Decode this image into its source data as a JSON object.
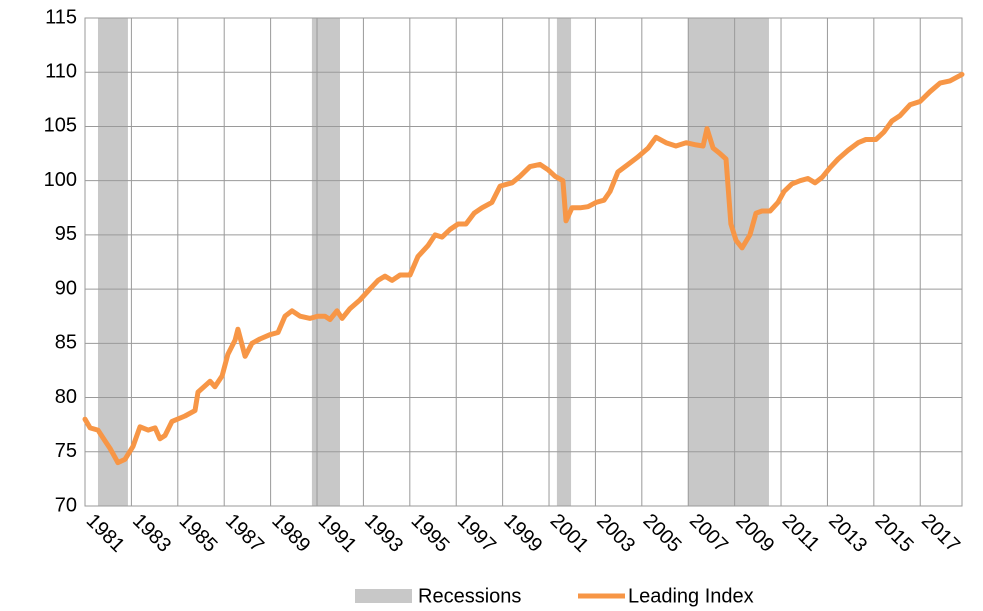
{
  "chart_data": {
    "type": "line",
    "x": [
      1981.0,
      1981.22,
      1981.56,
      1981.86,
      1982.08,
      1982.29,
      1982.42,
      1982.72,
      1983.07,
      1983.37,
      1983.72,
      1984.02,
      1984.23,
      1984.45,
      1984.75,
      1985.31,
      1985.74,
      1985.87,
      1986.39,
      1986.6,
      1986.91,
      1987.16,
      1987.47,
      1987.59,
      1987.9,
      1988.2,
      1988.54,
      1988.97,
      1989.32,
      1989.62,
      1989.92,
      1990.27,
      1990.7,
      1991.04,
      1991.34,
      1991.56,
      1991.86,
      1992.08,
      1992.42,
      1992.85,
      1993.28,
      1993.63,
      1993.93,
      1994.23,
      1994.58,
      1995.01,
      1995.35,
      1995.78,
      1996.09,
      1996.39,
      1996.73,
      1997.08,
      1997.42,
      1997.77,
      1998.11,
      1998.54,
      1998.89,
      1999.41,
      1999.75,
      2000.18,
      2000.61,
      2000.96,
      2001.26,
      2001.6,
      2001.73,
      2001.99,
      2002.34,
      2002.68,
      2003.03,
      2003.37,
      2003.63,
      2003.97,
      2004.41,
      2004.84,
      2005.27,
      2005.61,
      2006.04,
      2006.47,
      2006.91,
      2007.34,
      2007.64,
      2007.81,
      2008.07,
      2008.37,
      2008.63,
      2008.84,
      2009.06,
      2009.32,
      2009.66,
      2009.92,
      2010.18,
      2010.53,
      2010.87,
      2011.13,
      2011.47,
      2011.82,
      2012.16,
      2012.47,
      2012.77,
      2013.11,
      2013.46,
      2013.89,
      2014.32,
      2014.66,
      2015.09,
      2015.44,
      2015.78,
      2016.13,
      2016.56,
      2016.99,
      2017.42,
      2017.85,
      2018.28,
      2018.8
    ],
    "series": [
      {
        "name": "Leading Index",
        "color": "#f79646",
        "values": [
          78,
          77.2,
          77,
          76,
          75.3,
          74.5,
          74,
          74.3,
          75.5,
          77.3,
          77,
          77.2,
          76.2,
          76.5,
          77.8,
          78.3,
          78.8,
          80.5,
          81.5,
          81,
          82,
          84,
          85.3,
          86.3,
          83.8,
          85,
          85.4,
          85.8,
          86,
          87.5,
          88,
          87.5,
          87.3,
          87.5,
          87.5,
          87.2,
          88,
          87.3,
          88.2,
          89,
          90,
          90.8,
          91.2,
          90.8,
          91.3,
          91.3,
          93,
          94,
          95,
          94.8,
          95.5,
          96,
          96,
          97,
          97.5,
          98,
          99.5,
          99.8,
          100.4,
          101.3,
          101.5,
          101,
          100.4,
          100,
          96.3,
          97.5,
          97.5,
          97.6,
          98,
          98.2,
          99,
          100.8,
          101.5,
          102.2,
          103,
          104,
          103.5,
          103.2,
          103.5,
          103.3,
          103.2,
          104.8,
          103,
          102.5,
          102,
          96,
          94.5,
          93.8,
          95,
          97,
          97.2,
          97.2,
          98,
          99,
          99.7,
          100,
          100.2,
          99.8,
          100.3,
          101.2,
          102,
          102.8,
          103.5,
          103.8,
          103.8,
          104.5,
          105.5,
          106,
          107,
          107.3,
          108.2,
          109,
          109.2,
          109.8
        ]
      }
    ],
    "recessions": {
      "name": "Recessions",
      "color": "#c8c8c8",
      "spans": [
        [
          1981.56,
          1982.85
        ],
        [
          1990.78,
          1991.99
        ],
        [
          2001.34,
          2001.95
        ],
        [
          2006.99,
          2010.48
        ]
      ]
    },
    "xlim": [
      1981,
      2018.8
    ],
    "xticks": [
      1981,
      1983,
      1985,
      1987,
      1989,
      1991,
      1993,
      1995,
      1997,
      1999,
      2001,
      2003,
      2005,
      2007,
      2009,
      2011,
      2013,
      2015,
      2017
    ],
    "ylim": [
      70,
      115
    ],
    "yticks": [
      70,
      75,
      80,
      85,
      90,
      95,
      100,
      105,
      110,
      115
    ],
    "grid": true
  }
}
